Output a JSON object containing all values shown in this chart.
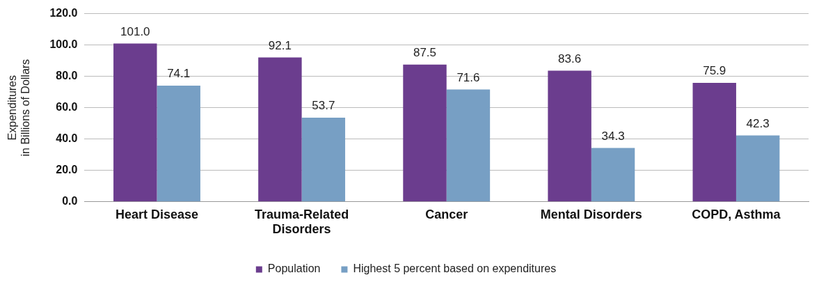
{
  "chart_data": {
    "type": "bar",
    "ylabel": "Expenditures\nin Billions of Dollars",
    "categories": [
      "Heart Disease",
      "Trauma-Related Disorders",
      "Cancer",
      "Mental Disorders",
      "COPD, Asthma"
    ],
    "series": [
      {
        "name": "Population",
        "color": "#6b3d8e",
        "values": [
          101.0,
          92.1,
          87.5,
          83.6,
          75.9
        ],
        "value_labels": [
          "101.0",
          "92.1",
          "87.5",
          "83.6",
          "75.9"
        ]
      },
      {
        "name": "Highest 5 percent based on expenditures",
        "color": "#779fc4",
        "values": [
          74.1,
          53.7,
          71.6,
          34.3,
          42.3
        ],
        "value_labels": [
          "74.1",
          "53.7",
          "71.6",
          "34.3",
          "42.3"
        ]
      }
    ],
    "ylim": [
      0,
      120
    ],
    "yticks": [
      {
        "value": 0,
        "label": "0.0"
      },
      {
        "value": 20,
        "label": "20.0"
      },
      {
        "value": 40,
        "label": "40.0"
      },
      {
        "value": 60,
        "label": "60.0"
      },
      {
        "value": 80,
        "label": "80.0"
      },
      {
        "value": 100,
        "label": "100.0"
      },
      {
        "value": 120,
        "label": "120.0"
      }
    ],
    "grid": "y",
    "legend": "bottom"
  }
}
